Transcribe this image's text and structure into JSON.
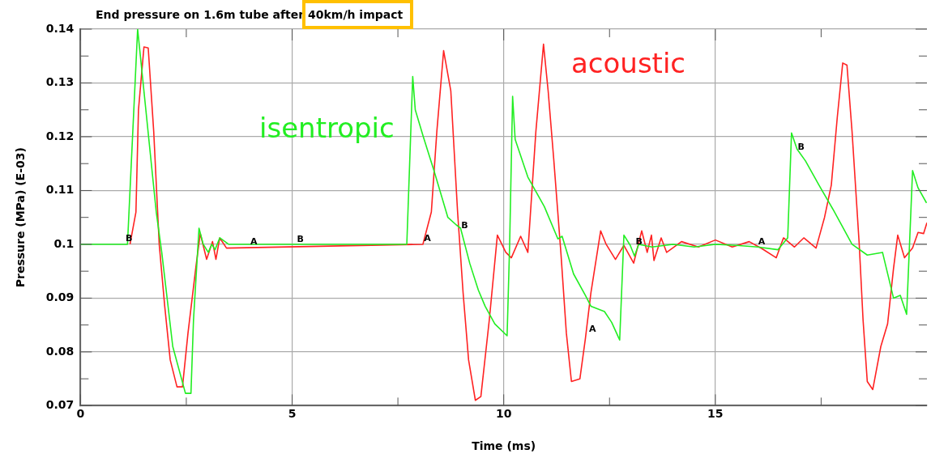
{
  "chart_data": {
    "type": "line",
    "title": "End pressure on 1.6m tube after 40km/h impact",
    "xlabel": "Time (ms)",
    "ylabel": "Pressure (MPa) (E-03)",
    "xlim": [
      0,
      20
    ],
    "xticks": [
      0,
      {
        "value": 2.5,
        "label": null
      },
      5,
      {
        "value": 7.5,
        "label": null
      },
      10,
      {
        "value": 12.5,
        "label": null
      },
      15,
      {
        "value": 17.5,
        "label": null
      }
    ],
    "ylim": [
      0.07,
      0.14
    ],
    "yticks": [
      0.07,
      {
        "value": 0.075,
        "label": null
      },
      0.08,
      {
        "value": 0.085,
        "label": null
      },
      0.09,
      {
        "value": 0.095,
        "label": null
      },
      0.1,
      {
        "value": 0.105,
        "label": null
      },
      0.11,
      {
        "value": 0.115,
        "label": null
      },
      0.12,
      {
        "value": 0.125,
        "label": null
      },
      0.13,
      {
        "value": 0.135,
        "label": null
      },
      0.14
    ],
    "grid": true,
    "legend": false,
    "marker": "none",
    "line_style": "solid",
    "series": [
      {
        "name": "isentropic",
        "color": "#22ee22",
        "x": [
          0,
          1.11,
          1.35,
          1.79,
          1.92,
          2.18,
          2.48,
          2.61,
          2.67,
          2.8,
          2.9,
          3.02,
          3.1,
          3.18,
          3.29,
          3.5,
          4,
          5,
          6,
          7,
          7.71,
          7.85,
          7.91,
          8.1,
          8.36,
          8.68,
          8.88,
          8.98,
          9.2,
          9.4,
          9.56,
          9.79,
          10.08,
          10.14,
          10.21,
          10.27,
          10.57,
          10.96,
          11.28,
          11.38,
          11.65,
          11.93,
          12.06,
          12.38,
          12.55,
          12.74,
          12.84,
          12.99,
          13.09,
          13.19,
          13.5,
          14,
          14.5,
          15,
          15.5,
          16,
          16.48,
          16.71,
          16.8,
          16.93,
          17.13,
          17.45,
          17.78,
          18.23,
          18.59,
          18.95,
          19.21,
          19.37,
          19.52,
          19.66,
          19.79,
          19.99
        ],
        "values": [
          0.1,
          0.1,
          0.14,
          0.106,
          0.0985,
          0.081,
          0.0723,
          0.0723,
          0.0859,
          0.103,
          0.1,
          0.0985,
          0.1,
          0.099,
          0.1012,
          0.1,
          0.1,
          0.1,
          0.1,
          0.1,
          0.1,
          0.1312,
          0.125,
          0.12,
          0.1135,
          0.105,
          0.1036,
          0.103,
          0.0964,
          0.0915,
          0.0885,
          0.0852,
          0.083,
          0.1,
          0.1275,
          0.1195,
          0.1125,
          0.107,
          0.101,
          0.1015,
          0.0945,
          0.0905,
          0.0885,
          0.0875,
          0.0855,
          0.0822,
          0.1017,
          0.0998,
          0.0978,
          0.1,
          0.0995,
          0.1,
          0.0995,
          0.1,
          0.0998,
          0.0995,
          0.099,
          0.1012,
          0.1207,
          0.1177,
          0.1155,
          0.111,
          0.1065,
          0.1,
          0.098,
          0.0985,
          0.09,
          0.0905,
          0.087,
          0.1137,
          0.1105,
          0.1077
        ]
      },
      {
        "name": "acoustic",
        "color": "#ff2222",
        "x": [
          1.17,
          1.31,
          1.37,
          1.5,
          1.6,
          1.73,
          1.86,
          1.99,
          2.12,
          2.28,
          2.41,
          2.54,
          2.73,
          2.83,
          2.98,
          3.12,
          3.2,
          3.29,
          3.45,
          8.09,
          8.29,
          8.42,
          8.58,
          8.75,
          8.91,
          9.04,
          9.17,
          9.33,
          9.46,
          9.66,
          9.85,
          10.05,
          10.18,
          10.4,
          10.57,
          10.76,
          10.94,
          11.05,
          11.18,
          11.35,
          11.48,
          11.6,
          11.8,
          11.93,
          12.06,
          12.29,
          12.42,
          12.64,
          12.84,
          13.07,
          13.26,
          13.39,
          13.49,
          13.55,
          13.72,
          13.85,
          14.2,
          14.6,
          15,
          15.4,
          15.8,
          16.1,
          16.44,
          16.61,
          16.87,
          17.09,
          17.38,
          17.58,
          17.74,
          17.88,
          18.01,
          18.11,
          18.23,
          18.4,
          18.49,
          18.59,
          18.72,
          18.91,
          19.07,
          19.21,
          19.31,
          19.47,
          19.66,
          19.79,
          19.92,
          20
        ],
        "values": [
          0.1,
          0.106,
          0.125,
          0.1367,
          0.1365,
          0.121,
          0.1,
          0.0885,
          0.0785,
          0.0735,
          0.0735,
          0.0835,
          0.096,
          0.102,
          0.0972,
          0.1005,
          0.0972,
          0.1012,
          0.0993,
          0.1,
          0.106,
          0.121,
          0.136,
          0.1285,
          0.106,
          0.091,
          0.0785,
          0.071,
          0.0717,
          0.086,
          0.1017,
          0.0985,
          0.0975,
          0.1015,
          0.0985,
          0.121,
          0.1372,
          0.1285,
          0.116,
          0.0985,
          0.0835,
          0.0745,
          0.075,
          0.0825,
          0.091,
          0.1025,
          0.1,
          0.0972,
          0.0998,
          0.0965,
          0.1025,
          0.0985,
          0.1017,
          0.097,
          0.1012,
          0.0985,
          0.1005,
          0.0995,
          0.1008,
          0.0995,
          0.1005,
          0.0992,
          0.0975,
          0.1012,
          0.0995,
          0.1012,
          0.0993,
          0.105,
          0.111,
          0.1235,
          0.1337,
          0.1333,
          0.121,
          0.1,
          0.086,
          0.0745,
          0.073,
          0.081,
          0.0852,
          0.0955,
          0.1017,
          0.0975,
          0.0993,
          0.1022,
          0.102,
          0.104
        ]
      }
    ],
    "annotations": [
      {
        "text": "B",
        "x": 1.05,
        "y": 0.1007
      },
      {
        "text": "A",
        "x": 4,
        "y": 0.1
      },
      {
        "text": "B",
        "x": 5.1,
        "y": 0.1005
      },
      {
        "text": "A",
        "x": 8.1,
        "y": 0.1006
      },
      {
        "text": "B",
        "x": 8.98,
        "y": 0.103
      },
      {
        "text": "A",
        "x": 12.0,
        "y": 0.0838
      },
      {
        "text": "B",
        "x": 13.1,
        "y": 0.1
      },
      {
        "text": "A",
        "x": 16.0,
        "y": 0.1
      },
      {
        "text": "B",
        "x": 16.93,
        "y": 0.1177
      }
    ]
  }
}
